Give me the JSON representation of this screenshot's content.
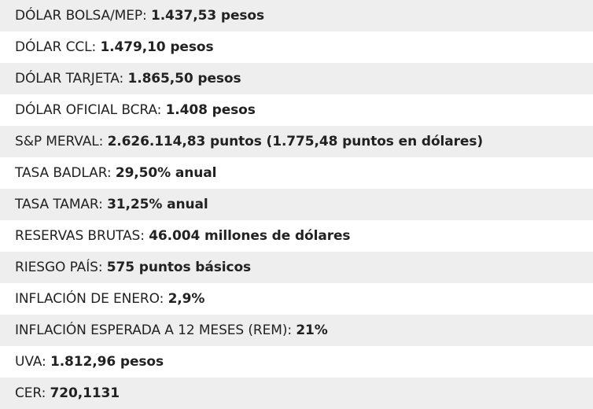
{
  "rows": [
    {
      "label": "DÓLAR BOLSA/MEP:",
      "value": "1.437,53 pesos"
    },
    {
      "label": "DÓLAR CCL:",
      "value": "1.479,10 pesos"
    },
    {
      "label": "DÓLAR TARJETA:",
      "value": "1.865,50 pesos"
    },
    {
      "label": "DÓLAR OFICIAL BCRA:",
      "value": "1.408 pesos"
    },
    {
      "label": "S&P MERVAL:",
      "value": "2.626.114,83 puntos (1.775,48 puntos en dólares)"
    },
    {
      "label": "TASA BADLAR:",
      "value": "29,50% anual"
    },
    {
      "label": "TASA TAMAR:",
      "value": "31,25% anual"
    },
    {
      "label": "RESERVAS BRUTAS:",
      "value": "46.004 millones de dólares"
    },
    {
      "label": "RIESGO PAÍS:",
      "value": "575 puntos básicos"
    },
    {
      "label": "INFLACIÓN DE ENERO:",
      "value": "2,9%"
    },
    {
      "label": "INFLACIÓN ESPERADA A 12 MESES (REM):",
      "value": "21%"
    },
    {
      "label": "UVA:",
      "value": "1.812,96 pesos"
    },
    {
      "label": "CER:",
      "value": "720,1131"
    }
  ]
}
